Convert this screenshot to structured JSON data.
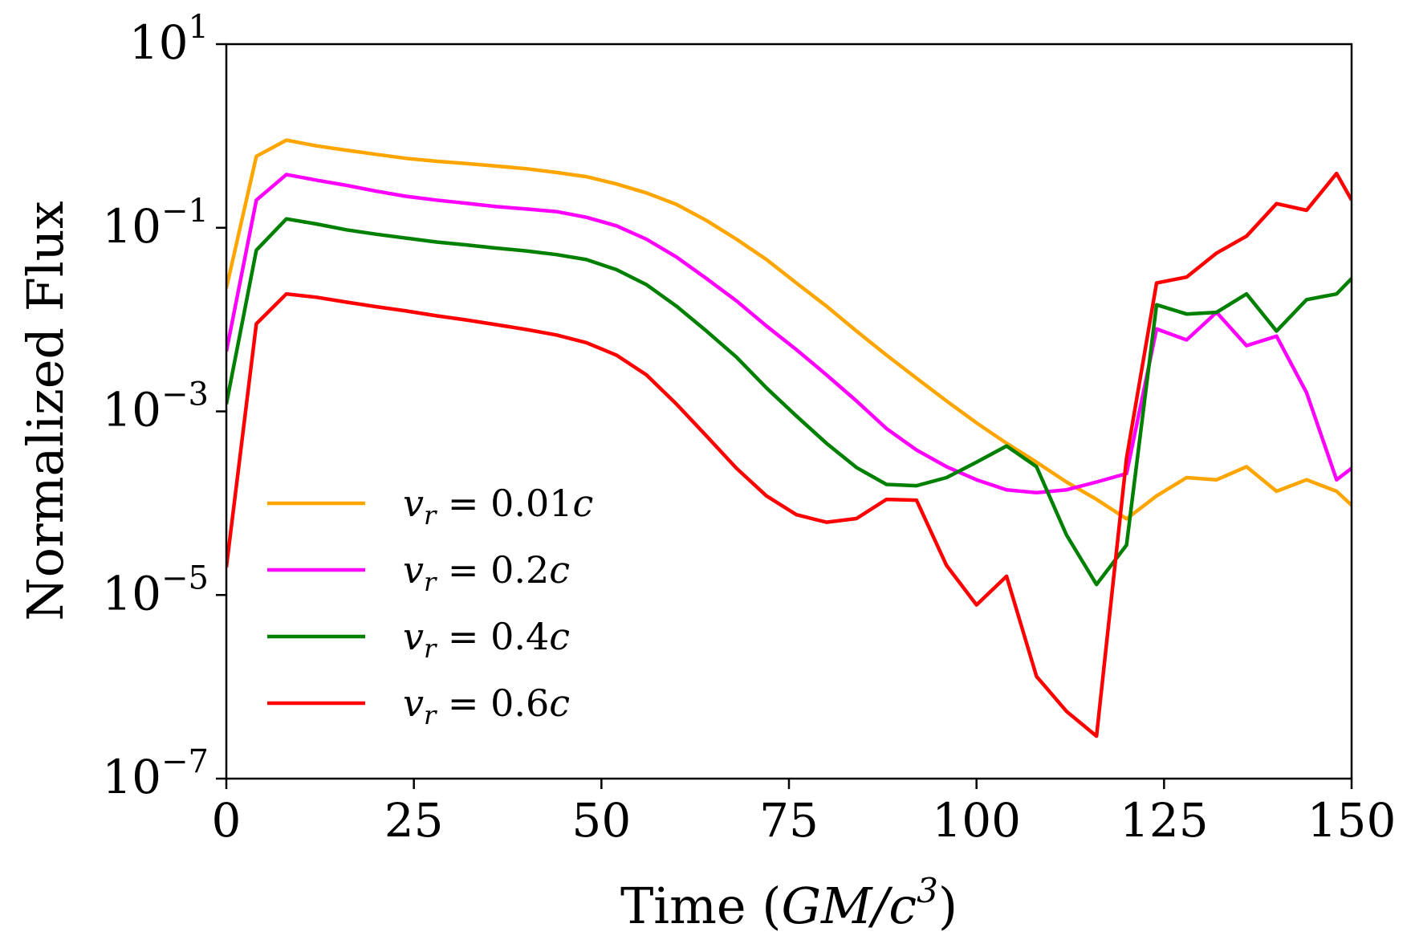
{
  "chart_data": {
    "type": "line",
    "title": "",
    "xlabel": "Time (GM/c³)",
    "xlabel_parts": {
      "prefix": "Time (",
      "italic": "GM/c",
      "sup": "3",
      "suffix": ")"
    },
    "ylabel": "Normalized Flux",
    "xlim": [
      0,
      150
    ],
    "ylim": [
      1e-07,
      10
    ],
    "yscale": "log",
    "grid": false,
    "legend_position": "lower-left",
    "x_ticks": [
      {
        "value": 0,
        "label": "0"
      },
      {
        "value": 25,
        "label": "25"
      },
      {
        "value": 50,
        "label": "50"
      },
      {
        "value": 75,
        "label": "75"
      },
      {
        "value": 100,
        "label": "100"
      },
      {
        "value": 125,
        "label": "125"
      },
      {
        "value": 150,
        "label": "150"
      }
    ],
    "y_ticks": [
      {
        "value": 10,
        "base": "10",
        "exp": "1"
      },
      {
        "value": 0.1,
        "base": "10",
        "exp": "−1"
      },
      {
        "value": 0.001,
        "base": "10",
        "exp": "−3"
      },
      {
        "value": 1e-05,
        "base": "10",
        "exp": "−5"
      },
      {
        "value": 1e-07,
        "base": "10",
        "exp": "−7"
      }
    ],
    "x": [
      0,
      4,
      8,
      12,
      16,
      20,
      24,
      28,
      32,
      36,
      40,
      44,
      48,
      52,
      56,
      60,
      64,
      68,
      72,
      76,
      80,
      84,
      88,
      92,
      96,
      100,
      104,
      108,
      112,
      116,
      120,
      124,
      128,
      132,
      136,
      140,
      144,
      148,
      150
    ],
    "series": [
      {
        "name": "v_r = 0.01c",
        "label": {
          "var": "v",
          "sub": "r",
          "value": "0.01",
          "unit": "c"
        },
        "color": "#FFA500",
        "values": [
          0.022,
          0.6,
          0.9,
          0.78,
          0.7,
          0.63,
          0.57,
          0.53,
          0.5,
          0.47,
          0.44,
          0.4,
          0.36,
          0.3,
          0.24,
          0.18,
          0.12,
          0.075,
          0.045,
          0.025,
          0.014,
          0.0075,
          0.0041,
          0.0023,
          0.0013,
          0.00075,
          0.00045,
          0.00028,
          0.00017,
          0.00011,
          6.75e-05,
          0.00012,
          0.00019,
          0.00018,
          0.00025,
          0.000135,
          0.00018,
          0.000135,
          9.5e-05
        ]
      },
      {
        "name": "v_r = 0.2c",
        "label": {
          "var": "v",
          "sub": "r",
          "value": "0.2",
          "unit": "c"
        },
        "color": "#FF00FF",
        "values": [
          0.0045,
          0.2,
          0.38,
          0.33,
          0.29,
          0.25,
          0.22,
          0.2,
          0.185,
          0.17,
          0.16,
          0.15,
          0.13,
          0.105,
          0.075,
          0.048,
          0.028,
          0.016,
          0.0085,
          0.0047,
          0.0025,
          0.0013,
          0.00065,
          0.00038,
          0.00025,
          0.00018,
          0.00014,
          0.00013,
          0.00014,
          0.00017,
          0.00021,
          0.0079,
          0.006,
          0.012,
          0.0052,
          0.0066,
          0.0016,
          0.00018,
          0.00024
        ]
      },
      {
        "name": "v_r = 0.4c",
        "label": {
          "var": "v",
          "sub": "r",
          "value": "0.4",
          "unit": "c"
        },
        "color": "#008000",
        "values": [
          0.0012,
          0.057,
          0.125,
          0.11,
          0.095,
          0.085,
          0.077,
          0.07,
          0.065,
          0.06,
          0.056,
          0.051,
          0.045,
          0.035,
          0.024,
          0.014,
          0.0075,
          0.0039,
          0.0018,
          0.00089,
          0.00045,
          0.000245,
          0.00016,
          0.000155,
          0.00019,
          0.00028,
          0.00042,
          0.00025,
          4.5e-05,
          1.3e-05,
          3.5e-05,
          0.0145,
          0.0115,
          0.012,
          0.019,
          0.0075,
          0.0165,
          0.019,
          0.028
        ]
      },
      {
        "name": "v_r = 0.6c",
        "label": {
          "var": "v",
          "sub": "r",
          "value": "0.6",
          "unit": "c"
        },
        "color": "#FF0000",
        "values": [
          2e-05,
          0.009,
          0.019,
          0.0175,
          0.0155,
          0.0138,
          0.0124,
          0.011,
          0.0099,
          0.0088,
          0.0078,
          0.0068,
          0.0056,
          0.0041,
          0.0025,
          0.0012,
          0.00054,
          0.00024,
          0.00012,
          7.5e-05,
          6.2e-05,
          6.8e-05,
          0.00011,
          0.000108,
          2.1e-05,
          7.8e-06,
          1.6e-05,
          1.3e-06,
          5.4e-07,
          2.9e-07,
          0.00031,
          0.025,
          0.029,
          0.053,
          0.081,
          0.183,
          0.155,
          0.39,
          0.2
        ]
      }
    ]
  }
}
